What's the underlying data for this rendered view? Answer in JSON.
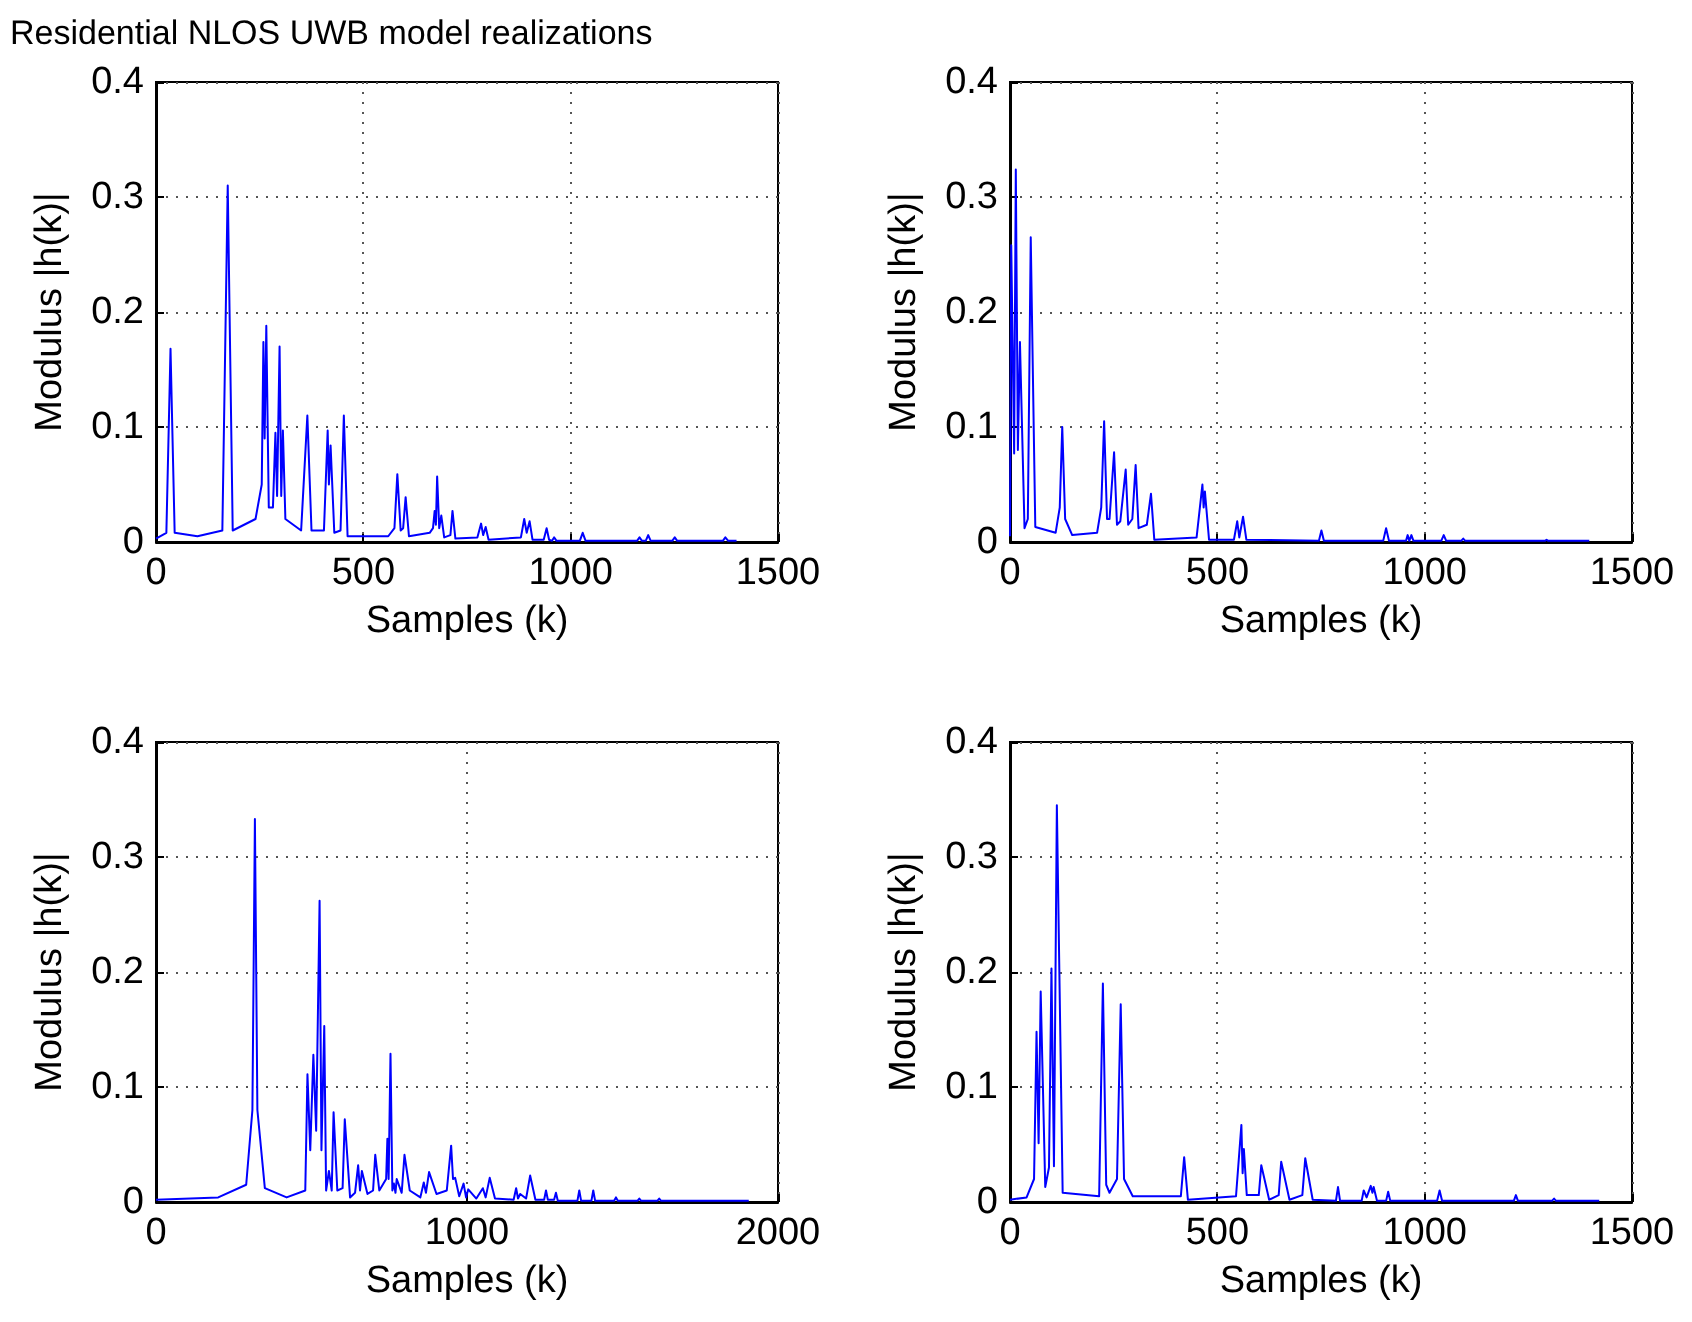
{
  "chart_data": [
    {
      "type": "line",
      "title": "Residential NLOS UWB model realizations",
      "xlabel": "Samples (k)",
      "ylabel": "Modulus |h(k)|",
      "xlim": [
        0,
        1500
      ],
      "xticks": [
        0,
        500,
        1000,
        1500
      ],
      "ylim": [
        0,
        0.4
      ],
      "yticks": [
        0,
        0.1,
        0.2,
        0.3,
        0.4
      ],
      "grid": true,
      "color": "#0000ff",
      "x": [
        0,
        25,
        35,
        45,
        100,
        160,
        173,
        185,
        240,
        255,
        259,
        262,
        266,
        272,
        282,
        288,
        292,
        298,
        302,
        306,
        312,
        350,
        365,
        375,
        405,
        414,
        417,
        421,
        430,
        445,
        453,
        462,
        560,
        575,
        582,
        590,
        596,
        602,
        610,
        660,
        668,
        672,
        675,
        678,
        683,
        688,
        695,
        710,
        715,
        722,
        775,
        784,
        789,
        795,
        802,
        880,
        888,
        894,
        901,
        908,
        935,
        942,
        948,
        955,
        960,
        966,
        1022,
        1029,
        1036,
        1160,
        1166,
        1172,
        1181,
        1187,
        1193,
        1245,
        1251,
        1257,
        1367,
        1373,
        1380,
        1400
      ],
      "values": [
        0.003,
        0.008,
        0.168,
        0.008,
        0.005,
        0.01,
        0.31,
        0.01,
        0.02,
        0.05,
        0.174,
        0.09,
        0.188,
        0.03,
        0.03,
        0.095,
        0.04,
        0.17,
        0.04,
        0.097,
        0.02,
        0.01,
        0.11,
        0.01,
        0.01,
        0.097,
        0.05,
        0.084,
        0.008,
        0.01,
        0.11,
        0.005,
        0.005,
        0.012,
        0.059,
        0.01,
        0.012,
        0.039,
        0.005,
        0.008,
        0.012,
        0.027,
        0.015,
        0.057,
        0.012,
        0.023,
        0.004,
        0.006,
        0.027,
        0.003,
        0.004,
        0.016,
        0.006,
        0.013,
        0.002,
        0.004,
        0.02,
        0.008,
        0.018,
        0.002,
        0.002,
        0.012,
        0.002,
        0.001,
        0.004,
        0.001,
        0.001,
        0.008,
        0.001,
        0.001,
        0.004,
        0.001,
        0.001,
        0.006,
        0.001,
        0.001,
        0.004,
        0.001,
        0.001,
        0.004,
        0.001,
        0.001
      ]
    },
    {
      "type": "line",
      "xlabel": "Samples (k)",
      "ylabel": "Modulus |h(k)|",
      "xlim": [
        0,
        1500
      ],
      "xticks": [
        0,
        500,
        1000,
        1500
      ],
      "ylim": [
        0,
        0.4
      ],
      "yticks": [
        0,
        0.1,
        0.2,
        0.3,
        0.4
      ],
      "grid": true,
      "color": "#0000ff",
      "x": [
        0,
        3,
        10,
        14,
        19,
        24,
        35,
        43,
        50,
        61,
        110,
        120,
        126,
        133,
        150,
        210,
        220,
        227,
        234,
        240,
        251,
        258,
        266,
        279,
        285,
        295,
        303,
        310,
        330,
        340,
        348,
        450,
        464,
        467,
        470,
        480,
        540,
        548,
        553,
        562,
        570,
        745,
        751,
        757,
        900,
        907,
        914,
        955,
        959,
        963,
        968,
        973,
        1040,
        1046,
        1052,
        1088,
        1093,
        1098,
        1290,
        1294,
        1298,
        1397
      ],
      "values": [
        0.005,
        0.258,
        0.077,
        0.324,
        0.08,
        0.174,
        0.012,
        0.02,
        0.265,
        0.013,
        0.008,
        0.03,
        0.1,
        0.02,
        0.006,
        0.008,
        0.03,
        0.105,
        0.02,
        0.02,
        0.078,
        0.015,
        0.018,
        0.063,
        0.015,
        0.02,
        0.067,
        0.012,
        0.015,
        0.042,
        0.002,
        0.004,
        0.05,
        0.03,
        0.044,
        0.002,
        0.002,
        0.018,
        0.004,
        0.022,
        0.002,
        0.001,
        0.01,
        0.001,
        0.001,
        0.012,
        0.001,
        0.001,
        0.006,
        0.001,
        0.006,
        0.001,
        0.001,
        0.006,
        0.001,
        0.001,
        0.003,
        0.001,
        0.001,
        0.002,
        0.001,
        0.001
      ]
    },
    {
      "type": "line",
      "xlabel": "Samples (k)",
      "ylabel": "Modulus |h(k)|",
      "xlim": [
        0,
        2000
      ],
      "xticks": [
        0,
        1000,
        2000
      ],
      "ylim": [
        0,
        0.4
      ],
      "yticks": [
        0,
        0.1,
        0.2,
        0.3,
        0.4
      ],
      "grid": true,
      "color": "#0000ff",
      "x": [
        0,
        200,
        290,
        310,
        318,
        326,
        350,
        420,
        480,
        487,
        496,
        506,
        515,
        526,
        532,
        541,
        547,
        556,
        565,
        571,
        583,
        600,
        607,
        624,
        640,
        650,
        656,
        662,
        680,
        698,
        705,
        718,
        740,
        744,
        748,
        754,
        760,
        765,
        770,
        774,
        790,
        799,
        816,
        850,
        861,
        868,
        878,
        902,
        935,
        949,
        955,
        962,
        975,
        989,
        997,
        1004,
        1030,
        1051,
        1060,
        1073,
        1090,
        1150,
        1158,
        1164,
        1171,
        1190,
        1203,
        1220,
        1248,
        1254,
        1260,
        1280,
        1286,
        1292,
        1355,
        1361,
        1367,
        1400,
        1406,
        1412,
        1473,
        1479,
        1485,
        1548,
        1554,
        1560,
        1612,
        1618,
        1624,
        1906
      ],
      "values": [
        0.002,
        0.004,
        0.015,
        0.08,
        0.333,
        0.08,
        0.012,
        0.004,
        0.01,
        0.111,
        0.045,
        0.128,
        0.062,
        0.262,
        0.045,
        0.153,
        0.01,
        0.027,
        0.01,
        0.078,
        0.01,
        0.012,
        0.072,
        0.004,
        0.008,
        0.032,
        0.01,
        0.027,
        0.007,
        0.01,
        0.041,
        0.01,
        0.02,
        0.055,
        0.02,
        0.129,
        0.01,
        0.016,
        0.008,
        0.02,
        0.008,
        0.041,
        0.01,
        0.004,
        0.017,
        0.008,
        0.026,
        0.007,
        0.01,
        0.049,
        0.02,
        0.021,
        0.005,
        0.016,
        0.004,
        0.011,
        0.003,
        0.012,
        0.004,
        0.021,
        0.003,
        0.002,
        0.012,
        0.003,
        0.007,
        0.003,
        0.023,
        0.002,
        0.002,
        0.01,
        0.002,
        0.002,
        0.008,
        0.001,
        0.001,
        0.01,
        0.001,
        0.001,
        0.01,
        0.001,
        0.001,
        0.004,
        0.001,
        0.001,
        0.003,
        0.001,
        0.001,
        0.003,
        0.001,
        0.001
      ]
    },
    {
      "type": "line",
      "xlabel": "Samples (k)",
      "ylabel": "Modulus |h(k)|",
      "xlim": [
        0,
        1500
      ],
      "xticks": [
        0,
        500,
        1000,
        1500
      ],
      "ylim": [
        0,
        0.4
      ],
      "yticks": [
        0,
        0.1,
        0.2,
        0.3,
        0.4
      ],
      "grid": true,
      "color": "#0000ff",
      "x": [
        0,
        40,
        58,
        64,
        69,
        74,
        85,
        94,
        100,
        106,
        113,
        127,
        215,
        224,
        232,
        240,
        258,
        267,
        275,
        296,
        412,
        420,
        429,
        545,
        558,
        561,
        564,
        571,
        600,
        606,
        625,
        648,
        654,
        674,
        705,
        712,
        730,
        786,
        791,
        796,
        848,
        853,
        860,
        870,
        874,
        877,
        885,
        907,
        912,
        917,
        1030,
        1036,
        1042,
        1215,
        1220,
        1225,
        1307,
        1312,
        1317,
        1421
      ],
      "values": [
        0.002,
        0.004,
        0.02,
        0.148,
        0.051,
        0.183,
        0.013,
        0.03,
        0.203,
        0.031,
        0.345,
        0.008,
        0.005,
        0.19,
        0.015,
        0.008,
        0.02,
        0.172,
        0.02,
        0.005,
        0.005,
        0.039,
        0.002,
        0.005,
        0.067,
        0.025,
        0.046,
        0.006,
        0.006,
        0.032,
        0.002,
        0.006,
        0.035,
        0.002,
        0.006,
        0.038,
        0.002,
        0.001,
        0.013,
        0.001,
        0.001,
        0.01,
        0.004,
        0.014,
        0.008,
        0.013,
        0.001,
        0.001,
        0.009,
        0.001,
        0.001,
        0.01,
        0.001,
        0.001,
        0.006,
        0.001,
        0.001,
        0.003,
        0.001,
        0.001
      ]
    }
  ]
}
